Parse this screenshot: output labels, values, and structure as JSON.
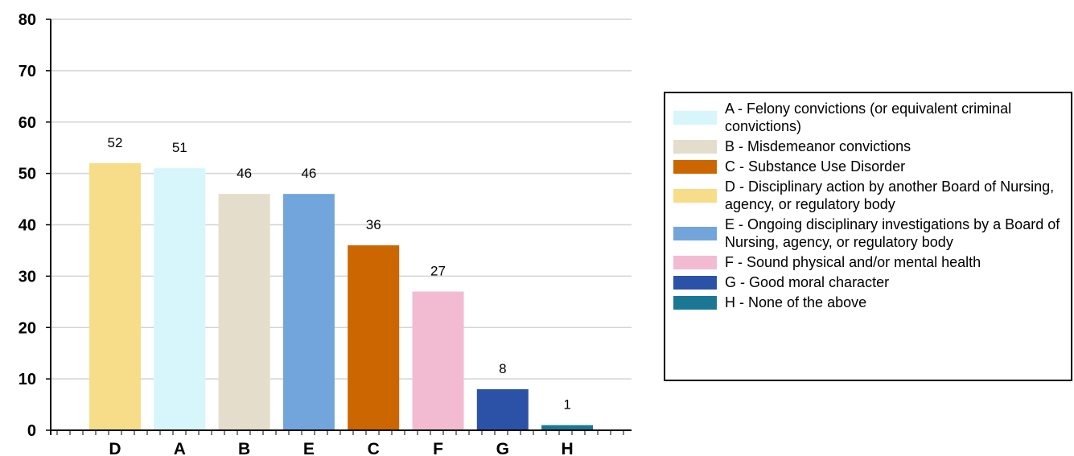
{
  "chart_data": {
    "type": "bar",
    "categories": [
      "D",
      "A",
      "B",
      "E",
      "C",
      "F",
      "G",
      "H"
    ],
    "values": [
      52,
      51,
      46,
      46,
      36,
      27,
      8,
      1
    ],
    "colors": [
      "#f7dd8a",
      "#d6f6fb",
      "#e4ddcb",
      "#72a5db",
      "#cc6600",
      "#f2bbd1",
      "#2c52a8",
      "#1b7895"
    ],
    "ylim": [
      0,
      80
    ],
    "yticks": [
      0,
      10,
      20,
      30,
      40,
      50,
      60,
      70,
      80
    ],
    "grid": true,
    "title": "",
    "xlabel": "",
    "ylabel": "",
    "legend_position": "right",
    "legend": [
      {
        "label": "A - Felony convictions (or equivalent criminal convictions)",
        "color": "#d6f6fb"
      },
      {
        "label": "B - Misdemeanor convictions",
        "color": "#e4ddcb"
      },
      {
        "label": "C - Substance Use Disorder",
        "color": "#cc6600"
      },
      {
        "label": "D - Disciplinary action by another Board of Nursing, agency, or regulatory body",
        "color": "#f7dd8a"
      },
      {
        "label": "E - Ongoing disciplinary investigations by a Board of Nursing, agency, or regulatory body",
        "color": "#72a5db"
      },
      {
        "label": "F - Sound physical and/or mental health",
        "color": "#f2bbd1"
      },
      {
        "label": "G - Good moral character",
        "color": "#2c52a8"
      },
      {
        "label": "H - None of the above",
        "color": "#1b7895"
      }
    ]
  }
}
